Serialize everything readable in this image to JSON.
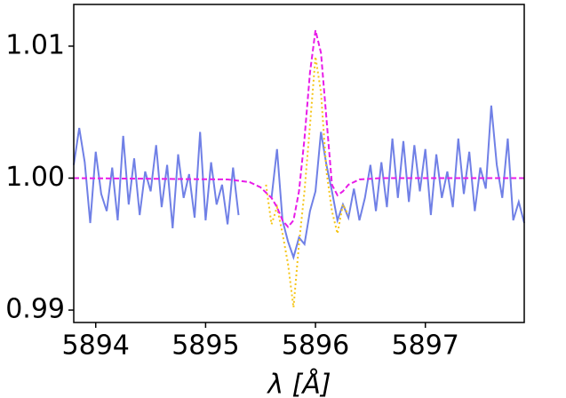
{
  "chart_data": {
    "type": "line",
    "xlabel": "λ [Å]",
    "xlim": [
      5893.8,
      5897.9
    ],
    "xticks": [
      5894,
      5895,
      5896,
      5897
    ],
    "ylim": [
      0.98906,
      1.01316
    ],
    "yticks": [
      0.99,
      {
        "value": 1,
        "label": "1.00"
      },
      1.01
    ],
    "series": [
      {
        "color": "#7080e6",
        "style": "solid",
        "x": [
          5893.8,
          5893.85,
          5893.9,
          5893.95,
          5894.0,
          5894.05,
          5894.1,
          5894.15,
          5894.2,
          5894.25,
          5894.3,
          5894.35,
          5894.4,
          5894.45,
          5894.5,
          5894.55,
          5894.6,
          5894.65,
          5894.7,
          5894.75,
          5894.8,
          5894.85,
          5894.9,
          5894.95,
          5895.0,
          5895.05,
          5895.1,
          5895.15,
          5895.2,
          5895.25,
          5895.3,
          5895.45,
          5895.6,
          5895.65,
          5895.7,
          5895.75,
          5895.8,
          5895.85,
          5895.9,
          5895.95,
          5896.0,
          5896.05,
          5896.1,
          5896.15,
          5896.2,
          5896.25,
          5896.3,
          5896.35,
          5896.4,
          5896.45,
          5896.5,
          5896.55,
          5896.6,
          5896.65,
          5896.7,
          5896.75,
          5896.8,
          5896.85,
          5896.9,
          5896.95,
          5897.0,
          5897.05,
          5897.1,
          5897.15,
          5897.2,
          5897.25,
          5897.3,
          5897.35,
          5897.4,
          5897.45,
          5897.5,
          5897.55,
          5897.6,
          5897.65,
          5897.7,
          5897.75,
          5897.8,
          5897.85,
          5897.9
        ],
        "values": [
          1.001,
          1.0038,
          1.0012,
          0.9966,
          1.002,
          0.9988,
          0.9975,
          1.0008,
          0.9968,
          1.0032,
          0.998,
          1.0015,
          0.9972,
          1.0005,
          0.999,
          1.0025,
          0.9978,
          1.001,
          0.9962,
          1.0018,
          0.9985,
          1.0003,
          0.997,
          1.0035,
          0.9968,
          1.0012,
          0.998,
          0.9995,
          0.9965,
          1.0008,
          0.9972,
          null,
          0.9985,
          1.0022,
          0.9968,
          0.9952,
          0.994,
          0.9955,
          0.995,
          0.9975,
          0.999,
          1.0035,
          1.001,
          0.999,
          0.9968,
          0.998,
          0.997,
          0.9992,
          0.9968,
          0.9985,
          1.001,
          0.9975,
          1.0012,
          0.9978,
          1.003,
          0.9985,
          1.0028,
          0.9982,
          1.0025,
          0.999,
          1.0022,
          0.9972,
          1.0018,
          0.9985,
          1.0005,
          0.9978,
          1.003,
          0.9988,
          1.002,
          0.9975,
          1.0008,
          0.9992,
          1.0055,
          1.001,
          0.9985,
          1.003,
          0.9968,
          0.9982,
          0.9966
        ]
      },
      {
        "color": "#f5c518",
        "style": "dotted",
        "x": [
          5895.55,
          5895.6,
          5895.65,
          5895.7,
          5895.75,
          5895.8,
          5895.85,
          5895.9,
          5895.95,
          5896.0,
          5896.05,
          5896.1,
          5896.15,
          5896.2,
          5896.25,
          5896.3
        ],
        "values": [
          0.9995,
          0.9965,
          0.9978,
          0.9958,
          0.9935,
          0.9902,
          0.995,
          0.999,
          1.004,
          1.0092,
          1.0065,
          1.0005,
          0.9975,
          0.9958,
          0.998,
          0.9972
        ]
      },
      {
        "color": "#e81ce8",
        "style": "dashed",
        "x": [
          5893.8,
          5895.2,
          5895.4,
          5895.5,
          5895.6,
          5895.65,
          5895.7,
          5895.75,
          5895.8,
          5895.85,
          5895.9,
          5895.95,
          5896.0,
          5896.05,
          5896.1,
          5896.15,
          5896.2,
          5896.25,
          5896.3,
          5896.4,
          5896.6,
          5897.9
        ],
        "values": [
          1.0,
          0.9999,
          0.9997,
          0.9993,
          0.9985,
          0.9978,
          0.9968,
          0.9963,
          0.9968,
          0.999,
          1.003,
          1.008,
          1.0112,
          1.0095,
          1.0045,
          0.9995,
          0.9987,
          0.999,
          0.9995,
          0.9999,
          1.0,
          1.0
        ]
      }
    ]
  }
}
